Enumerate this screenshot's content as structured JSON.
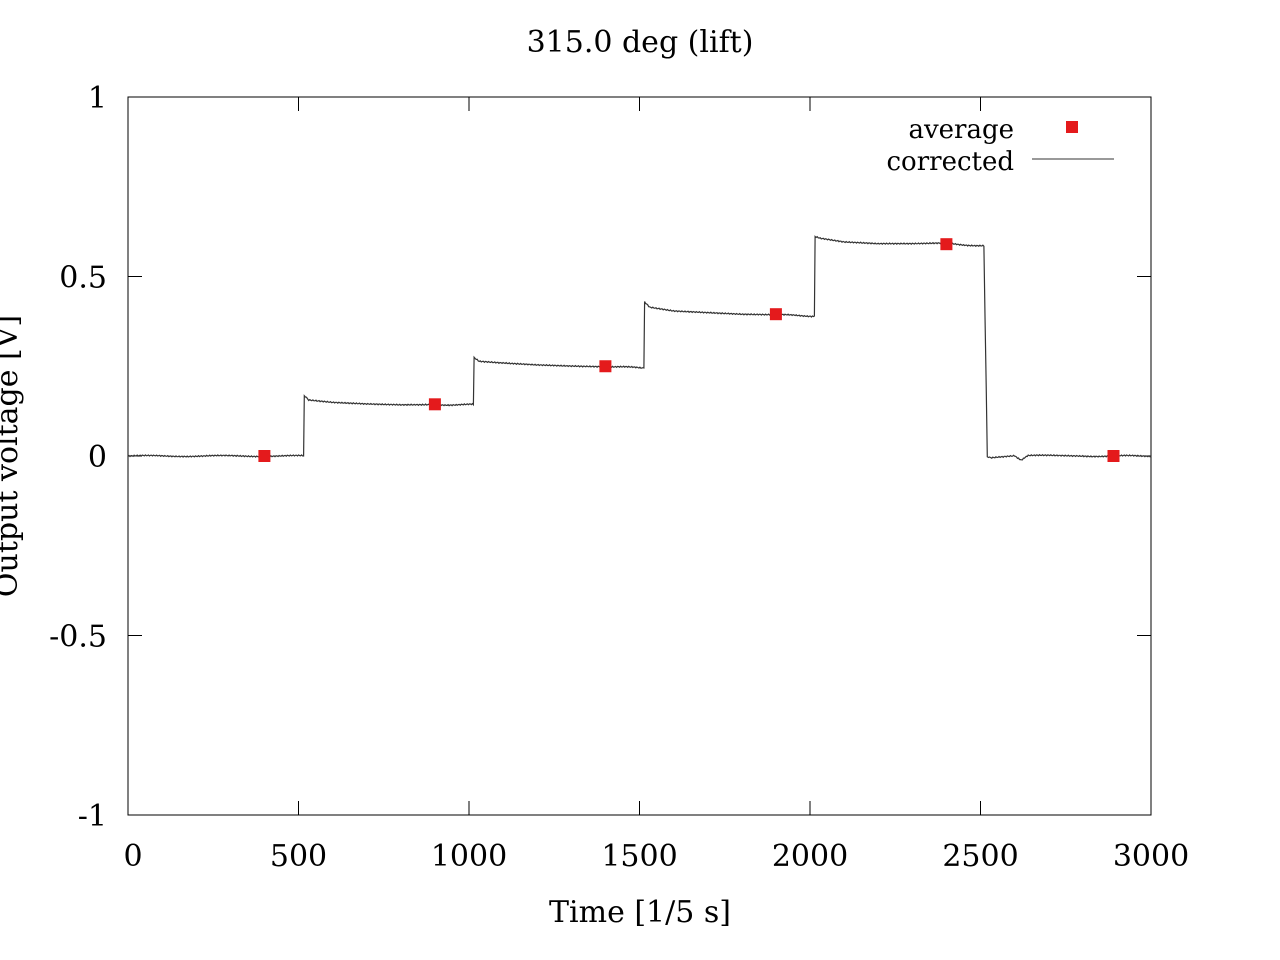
{
  "chart_data": {
    "type": "scatter",
    "title": "315.0 deg (lift)",
    "xlabel": "Time [1/5 s]",
    "ylabel": "Output voltage [V]",
    "xlim": [
      0,
      3000
    ],
    "ylim": [
      -1,
      1
    ],
    "x_ticks": [
      0,
      500,
      1000,
      1500,
      2000,
      2500,
      3000
    ],
    "x_tick_labels": [
      "0",
      "500",
      "1000",
      "1500",
      "2000",
      "2500",
      "3000"
    ],
    "y_ticks": [
      1,
      0.5,
      0,
      -0.5,
      -1
    ],
    "y_tick_labels": [
      "1",
      "0.5",
      "0",
      "-0.5",
      "-1"
    ],
    "grid": false,
    "legend_position": "top-right",
    "series": [
      {
        "name": "average",
        "style": "markers",
        "marker": "square",
        "color": "#e41a1c",
        "x": [
          400,
          900,
          1400,
          1900,
          2400,
          2890
        ],
        "y": [
          0.0,
          0.144,
          0.25,
          0.395,
          0.59,
          0.0
        ]
      },
      {
        "name": "corrected",
        "style": "line",
        "color": "#333333",
        "x": [
          0,
          515,
          517,
          530,
          600,
          700,
          800,
          900,
          1013,
          1015,
          1030,
          1100,
          1200,
          1300,
          1400,
          1513,
          1515,
          1530,
          1600,
          1700,
          1800,
          1900,
          2013,
          2015,
          2030,
          2100,
          2200,
          2300,
          2400,
          2510,
          2520,
          2530,
          2600,
          2620,
          2640,
          2700,
          2800,
          3000
        ],
        "y": [
          0.0,
          0.0,
          0.17,
          0.155,
          0.148,
          0.144,
          0.142,
          0.143,
          0.143,
          0.275,
          0.265,
          0.26,
          0.255,
          0.252,
          0.25,
          0.245,
          0.43,
          0.415,
          0.405,
          0.4,
          0.395,
          0.393,
          0.39,
          0.61,
          0.605,
          0.595,
          0.59,
          0.59,
          0.592,
          0.585,
          0.0,
          -0.005,
          0.0,
          -0.01,
          0.0,
          0.002,
          0.0,
          0.0
        ]
      }
    ]
  }
}
